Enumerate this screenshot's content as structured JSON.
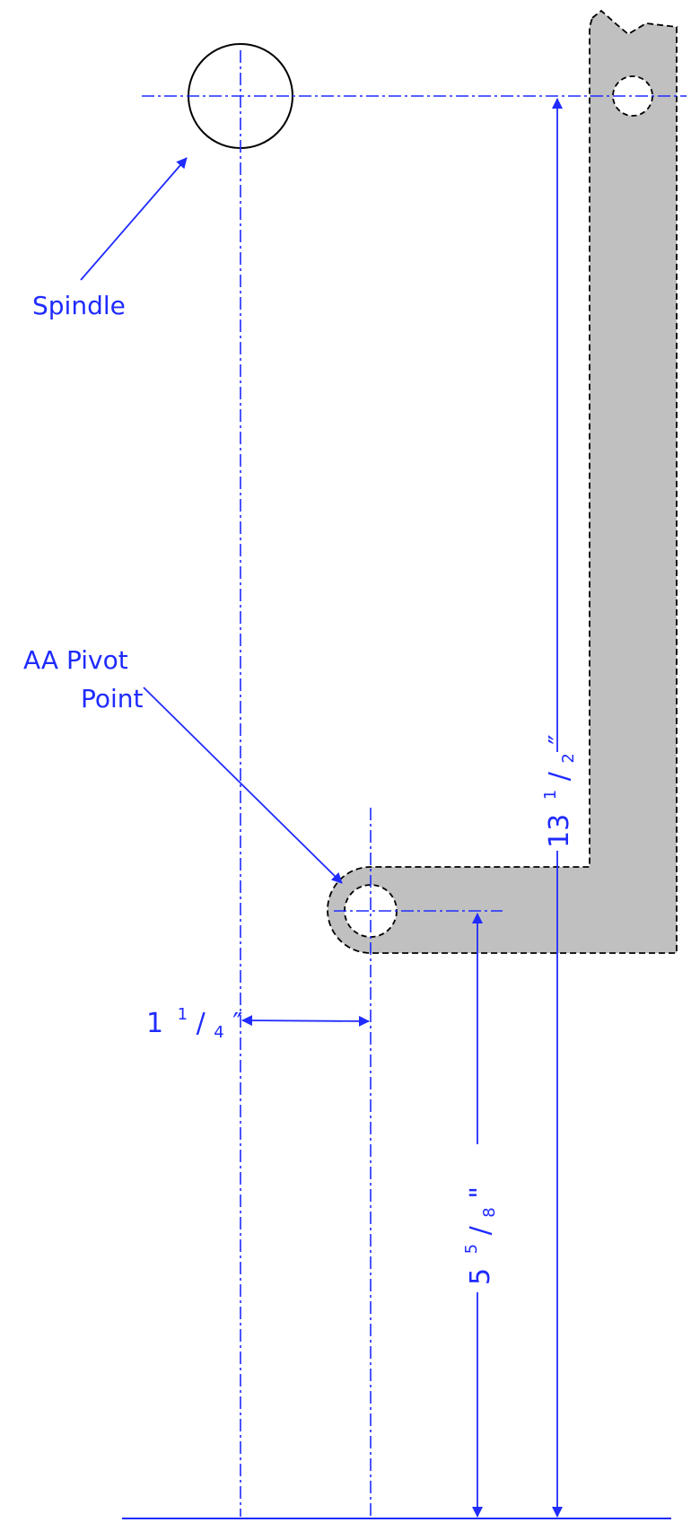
{
  "labels": {
    "spindle": "Spindle",
    "pivot_line1": "AA Pivot",
    "pivot_line2": "Point"
  },
  "dimensions": {
    "horizontal": {
      "whole": "1",
      "num": "1",
      "den": "4",
      "unit": "″"
    },
    "pivot_height": {
      "whole": "5",
      "num": "5",
      "den": "8",
      "unit": "\""
    },
    "spindle_height": {
      "whole": "13",
      "num": "1",
      "den": "2",
      "unit": "″"
    }
  },
  "colors": {
    "annotation": "#1f2bff",
    "part_fill": "#c0c0c0",
    "outline": "#000000"
  }
}
